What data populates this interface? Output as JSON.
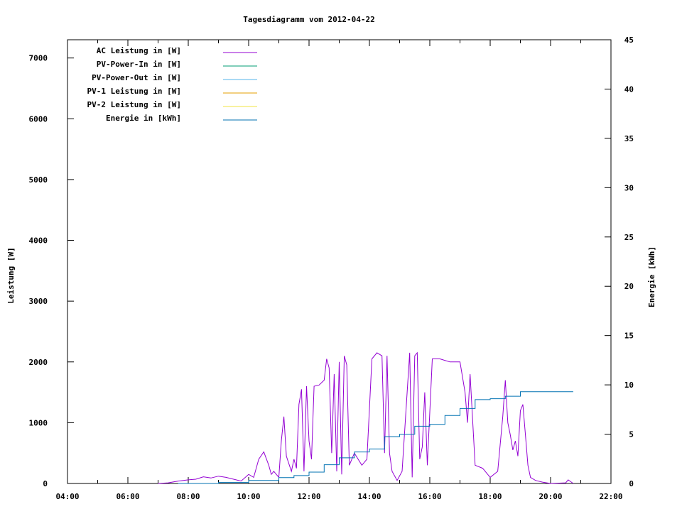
{
  "chart_data": {
    "type": "line",
    "title": "Tagesdiagramm vom 2012-04-22",
    "ylabel": "Leistung [W]",
    "y2label": "Energie [kWh]",
    "xlim": [
      "04:00",
      "22:00"
    ],
    "ylim": [
      0,
      7300
    ],
    "y2lim": [
      0,
      45
    ],
    "xticks": [
      "04:00",
      "06:00",
      "08:00",
      "10:00",
      "12:00",
      "14:00",
      "16:00",
      "18:00",
      "20:00",
      "22:00"
    ],
    "yticks": [
      0,
      1000,
      2000,
      3000,
      4000,
      5000,
      6000,
      7000
    ],
    "y2ticks": [
      0,
      5,
      10,
      15,
      20,
      25,
      30,
      35,
      40,
      45
    ],
    "grid": false,
    "legend_position": "top-left",
    "legend": [
      {
        "name": "AC Leistung in [W]",
        "color": "#9400d3"
      },
      {
        "name": "PV-Power-In in [W]",
        "color": "#009e73"
      },
      {
        "name": "PV-Power-Out in [W]",
        "color": "#56b4e9"
      },
      {
        "name": "PV-1 Leistung in [W]",
        "color": "#e69f00"
      },
      {
        "name": "PV-2 Leistung in [W]",
        "color": "#f0e442"
      },
      {
        "name": "Energie in [kWh]",
        "color": "#0072b2"
      }
    ],
    "series": [
      {
        "name": "AC Leistung in [W]",
        "axis": "y",
        "color": "#9400d3",
        "points": [
          [
            "07:00",
            0
          ],
          [
            "07:20",
            10
          ],
          [
            "07:40",
            40
          ],
          [
            "08:00",
            60
          ],
          [
            "08:15",
            70
          ],
          [
            "08:30",
            110
          ],
          [
            "08:45",
            90
          ],
          [
            "09:00",
            120
          ],
          [
            "09:15",
            100
          ],
          [
            "09:30",
            70
          ],
          [
            "09:45",
            40
          ],
          [
            "10:00",
            150
          ],
          [
            "10:10",
            100
          ],
          [
            "10:20",
            400
          ],
          [
            "10:30",
            520
          ],
          [
            "10:40",
            300
          ],
          [
            "10:45",
            150
          ],
          [
            "10:50",
            200
          ],
          [
            "11:00",
            100
          ],
          [
            "11:05",
            700
          ],
          [
            "11:10",
            1100
          ],
          [
            "11:15",
            450
          ],
          [
            "11:25",
            200
          ],
          [
            "11:30",
            400
          ],
          [
            "11:35",
            250
          ],
          [
            "11:40",
            1300
          ],
          [
            "11:45",
            1550
          ],
          [
            "11:50",
            200
          ],
          [
            "11:55",
            1600
          ],
          [
            "12:00",
            700
          ],
          [
            "12:05",
            400
          ],
          [
            "12:10",
            1600
          ],
          [
            "12:20",
            1620
          ],
          [
            "12:30",
            1700
          ],
          [
            "12:35",
            2050
          ],
          [
            "12:40",
            1900
          ],
          [
            "12:45",
            500
          ],
          [
            "12:50",
            1800
          ],
          [
            "12:55",
            200
          ],
          [
            "13:00",
            2000
          ],
          [
            "13:05",
            150
          ],
          [
            "13:10",
            2100
          ],
          [
            "13:15",
            1950
          ],
          [
            "13:20",
            300
          ],
          [
            "13:30",
            500
          ],
          [
            "13:45",
            300
          ],
          [
            "13:55",
            400
          ],
          [
            "14:05",
            2050
          ],
          [
            "14:15",
            2150
          ],
          [
            "14:25",
            2100
          ],
          [
            "14:30",
            500
          ],
          [
            "14:35",
            2100
          ],
          [
            "14:40",
            500
          ],
          [
            "14:45",
            200
          ],
          [
            "14:55",
            50
          ],
          [
            "15:05",
            200
          ],
          [
            "15:15",
            1500
          ],
          [
            "15:20",
            2150
          ],
          [
            "15:25",
            100
          ],
          [
            "15:30",
            2100
          ],
          [
            "15:35",
            2150
          ],
          [
            "15:40",
            400
          ],
          [
            "15:45",
            600
          ],
          [
            "15:50",
            1500
          ],
          [
            "15:55",
            300
          ],
          [
            "16:05",
            2050
          ],
          [
            "16:20",
            2050
          ],
          [
            "16:40",
            2000
          ],
          [
            "17:00",
            2000
          ],
          [
            "17:10",
            1500
          ],
          [
            "17:15",
            1000
          ],
          [
            "17:20",
            1800
          ],
          [
            "17:30",
            300
          ],
          [
            "17:45",
            250
          ],
          [
            "18:00",
            100
          ],
          [
            "18:15",
            200
          ],
          [
            "18:25",
            1100
          ],
          [
            "18:30",
            1700
          ],
          [
            "18:35",
            1000
          ],
          [
            "18:40",
            800
          ],
          [
            "18:45",
            550
          ],
          [
            "18:50",
            700
          ],
          [
            "18:55",
            450
          ],
          [
            "19:00",
            1200
          ],
          [
            "19:05",
            1300
          ],
          [
            "19:10",
            800
          ],
          [
            "19:15",
            300
          ],
          [
            "19:20",
            100
          ],
          [
            "19:30",
            50
          ],
          [
            "19:45",
            20
          ],
          [
            "20:00",
            0
          ],
          [
            "20:30",
            10
          ],
          [
            "20:35",
            60
          ],
          [
            "20:45",
            0
          ]
        ]
      },
      {
        "name": "Energie in [kWh]",
        "axis": "y2",
        "color": "#0072b2",
        "points": [
          [
            "07:40",
            0
          ],
          [
            "09:00",
            0.1
          ],
          [
            "10:00",
            0.3
          ],
          [
            "11:00",
            0.6
          ],
          [
            "11:30",
            0.8
          ],
          [
            "12:00",
            1.15
          ],
          [
            "12:30",
            1.9
          ],
          [
            "13:00",
            2.6
          ],
          [
            "13:30",
            3.2
          ],
          [
            "14:00",
            3.5
          ],
          [
            "14:30",
            4.75
          ],
          [
            "15:00",
            5.0
          ],
          [
            "15:30",
            5.8
          ],
          [
            "16:00",
            6.0
          ],
          [
            "16:30",
            6.9
          ],
          [
            "17:00",
            7.6
          ],
          [
            "17:30",
            8.5
          ],
          [
            "18:00",
            8.6
          ],
          [
            "18:30",
            8.85
          ],
          [
            "19:00",
            9.3
          ],
          [
            "20:45",
            9.3
          ]
        ]
      }
    ]
  }
}
